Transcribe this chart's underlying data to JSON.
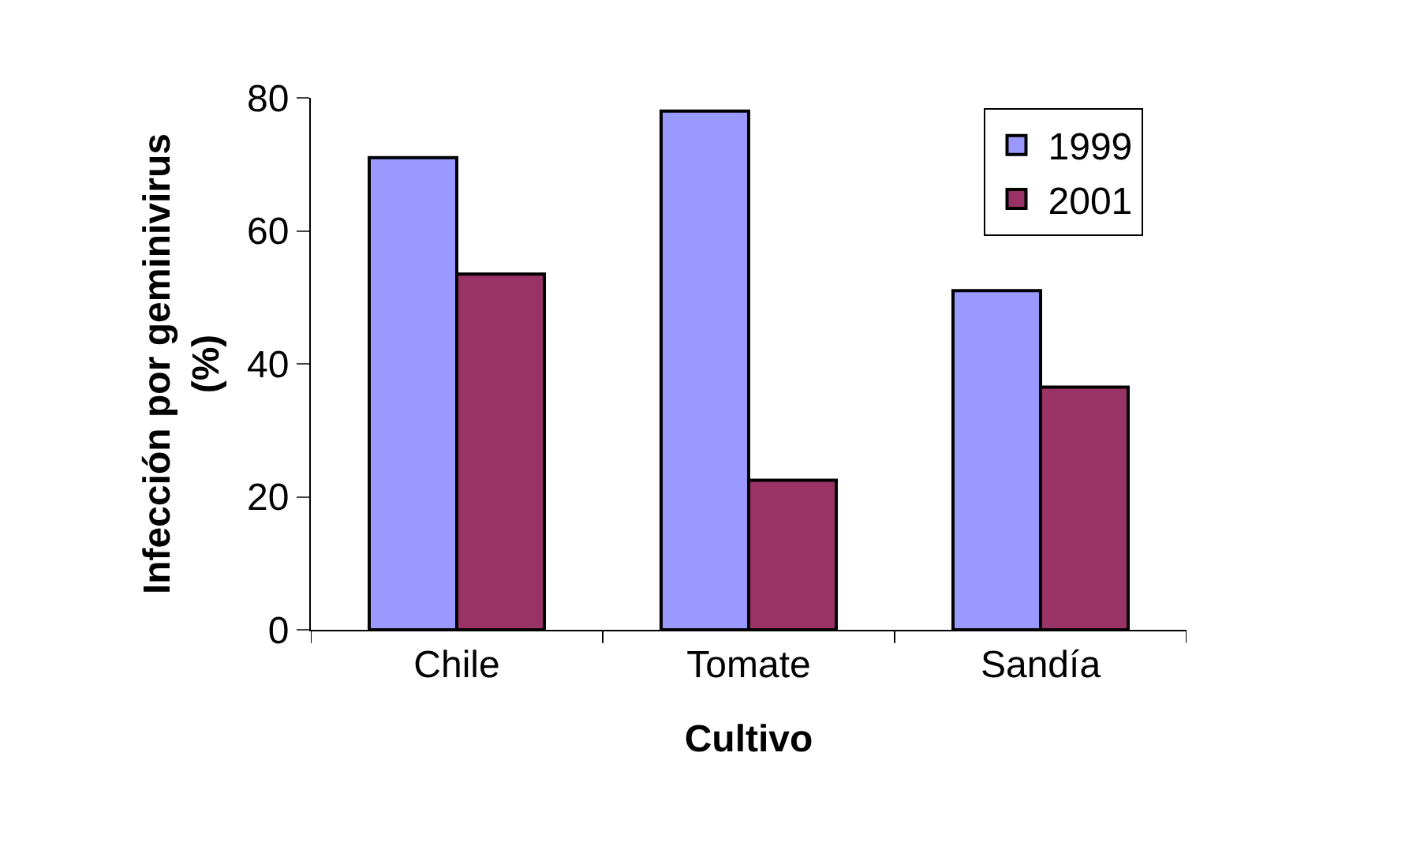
{
  "chart_data": {
    "type": "bar",
    "xlabel": "Cultivo",
    "ylabel": "Infección por geminivirus (%)",
    "categories": [
      "Chile",
      "Tomate",
      "Sandía"
    ],
    "series": [
      {
        "name": "1999",
        "color": "#9999ff",
        "values": [
          71,
          78,
          51
        ]
      },
      {
        "name": "2001",
        "color": "#993366",
        "values": [
          53.5,
          22.5,
          36.5
        ]
      }
    ],
    "ylim": [
      0,
      80
    ],
    "yticks": [
      0,
      20,
      40,
      60,
      80
    ],
    "legend": "top right"
  }
}
